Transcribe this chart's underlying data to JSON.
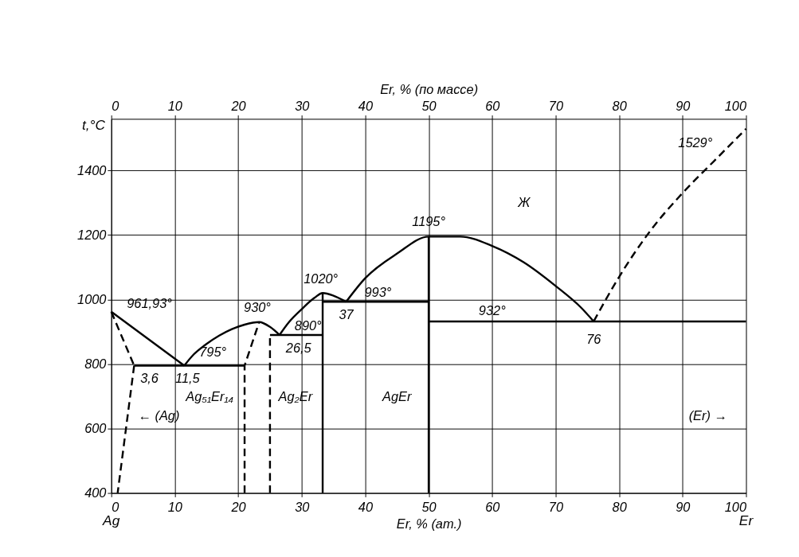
{
  "chart_data": {
    "type": "line",
    "xlabel": "Er, % (ат.)",
    "x2label": "Er, % (по массе)",
    "ylabel": "t,°C",
    "xlim": [
      0,
      100
    ],
    "ylim": [
      400,
      1560
    ],
    "xticks": [
      0,
      10,
      20,
      30,
      40,
      50,
      60,
      70,
      80,
      90,
      100
    ],
    "yticks": [
      400,
      600,
      800,
      1000,
      1200,
      1400
    ],
    "x2lim": [
      0,
      100
    ],
    "x2ticks": [
      0,
      10,
      20,
      30,
      40,
      50,
      60,
      70,
      80,
      90,
      100
    ],
    "grid": true,
    "marker": "none",
    "series": [
      {
        "x": [
          0,
          11.5
        ],
        "values": [
          961.93,
          795
        ],
        "color": "#000000",
        "line_style": "solid"
      },
      {
        "x": [
          11.5,
          13,
          15,
          17,
          19,
          21,
          23.3,
          25,
          26.5
        ],
        "values": [
          795,
          830,
          862,
          888,
          908,
          922,
          930,
          915,
          890
        ],
        "color": "#000000",
        "line_style": "solid"
      },
      {
        "x": [
          26.5,
          28,
          30,
          32,
          33.3,
          35,
          37
        ],
        "values": [
          890,
          930,
          970,
          1005,
          1020,
          1012,
          993
        ],
        "color": "#000000",
        "line_style": "solid"
      },
      {
        "x": [
          37,
          40,
          45,
          50,
          55,
          60,
          65,
          70,
          74,
          76
        ],
        "values": [
          993,
          1066,
          1142,
          1195,
          1195,
          1166,
          1115,
          1042,
          975,
          932
        ],
        "color": "#000000",
        "line_style": "solid"
      },
      {
        "x": [
          76,
          80,
          85,
          90,
          95,
          100
        ],
        "values": [
          932,
          1070,
          1215,
          1330,
          1430,
          1529
        ],
        "color": "#000000",
        "line_style": "dashed"
      },
      {
        "x": [
          0,
          3.6
        ],
        "values": [
          961.93,
          795
        ],
        "color": "#000000",
        "line_style": "dashed"
      },
      {
        "x": [
          3.6,
          1
        ],
        "values": [
          795,
          400
        ],
        "color": "#000000",
        "line_style": "dashed"
      },
      {
        "x": [
          3.6,
          21
        ],
        "values": [
          795,
          795
        ],
        "color": "#000000",
        "line_style": "solid"
      },
      {
        "x": [
          21,
          21,
          23.3
        ],
        "values": [
          400,
          795,
          930
        ],
        "color": "#000000",
        "line_style": "dashed"
      },
      {
        "x": [
          25,
          25
        ],
        "values": [
          400,
          890
        ],
        "color": "#000000",
        "line_style": "dashed"
      },
      {
        "x": [
          25,
          33.3
        ],
        "values": [
          890,
          890
        ],
        "color": "#000000",
        "line_style": "solid"
      },
      {
        "x": [
          33.3,
          33.3
        ],
        "values": [
          400,
          1020
        ],
        "color": "#000000",
        "line_style": "solid"
      },
      {
        "x": [
          33.3,
          50
        ],
        "values": [
          993,
          993
        ],
        "color": "#000000",
        "line_style": "solid"
      },
      {
        "x": [
          50,
          50
        ],
        "values": [
          400,
          1195
        ],
        "color": "#000000",
        "line_style": "solid"
      },
      {
        "x": [
          50,
          100
        ],
        "values": [
          932,
          932
        ],
        "color": "#000000",
        "line_style": "solid"
      }
    ],
    "annotations": [
      "961,93°",
      "3,6",
      "11,5",
      "795°",
      "930°",
      "890°",
      "26,5",
      "1020°",
      "37",
      "993°",
      "1195°",
      "932°",
      "76",
      "1529°",
      "Ж",
      "← (Ag)",
      "(Er) →",
      "Ag₅₁Er₁₄",
      "Ag₂Er",
      "AgEr",
      "Ag",
      "Er"
    ]
  }
}
